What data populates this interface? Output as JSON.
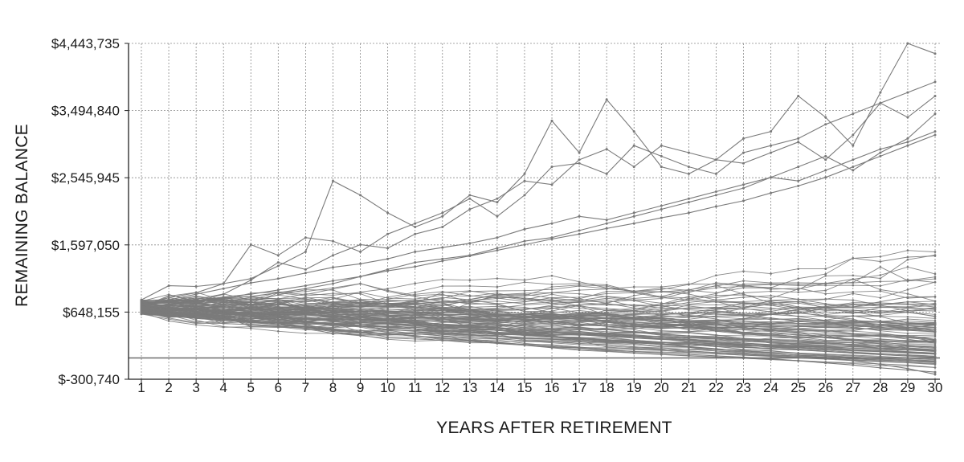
{
  "chart_data": {
    "type": "line",
    "title": "",
    "xlabel": "YEARS AFTER RETIREMENT",
    "ylabel": "REMAINING BALANCE",
    "x": [
      1,
      2,
      3,
      4,
      5,
      6,
      7,
      8,
      9,
      10,
      11,
      12,
      13,
      14,
      15,
      16,
      17,
      18,
      19,
      20,
      21,
      22,
      23,
      24,
      25,
      26,
      27,
      28,
      29,
      30
    ],
    "xticks": [
      "1",
      "2",
      "3",
      "4",
      "5",
      "6",
      "7",
      "8",
      "9",
      "10",
      "11",
      "12",
      "13",
      "14",
      "15",
      "16",
      "17",
      "18",
      "19",
      "20",
      "21",
      "22",
      "23",
      "24",
      "25",
      "26",
      "27",
      "28",
      "29",
      "30"
    ],
    "yticks": [
      {
        "value": -300740,
        "label": "$-300,740"
      },
      {
        "value": 648155,
        "label": "$648,155"
      },
      {
        "value": 1597050,
        "label": "$1,597,050"
      },
      {
        "value": 2545945,
        "label": "$2,545,945"
      },
      {
        "value": 3494840,
        "label": "$3,494,840"
      },
      {
        "value": 4443735,
        "label": "$4,443,735"
      }
    ],
    "ylim": [
      -300740,
      4443735
    ],
    "xlim": [
      1,
      30
    ],
    "reference_line_y": 0,
    "grid": true,
    "series_color": "#7a7a7a",
    "series_count": 110,
    "series": [
      {
        "values": [
          780000,
          790000,
          810000,
          860000,
          900000,
          960000,
          1020000,
          1090000,
          1150000,
          1230000,
          1290000,
          1370000,
          1440000,
          1520000,
          1600000,
          1680000,
          1750000,
          1830000,
          1900000,
          1980000,
          2050000,
          2140000,
          2220000,
          2330000,
          2430000,
          2550000,
          2700000,
          2850000,
          3000000,
          3150000
        ]
      },
      {
        "values": [
          820000,
          1020000,
          1010000,
          1050000,
          1120000,
          1300000,
          1500000,
          2500000,
          2300000,
          2050000,
          1850000,
          2000000,
          2300000,
          2200000,
          2600000,
          3350000,
          2900000,
          3650000,
          3200000,
          2700000,
          2600000,
          2800000,
          3100000,
          3200000,
          3700000,
          3400000,
          3000000,
          3750000,
          4443735,
          4300000
        ]
      },
      {
        "values": [
          750000,
          850000,
          920000,
          1050000,
          1600000,
          1450000,
          1700000,
          1650000,
          1500000,
          1750000,
          1900000,
          2050000,
          2250000,
          2000000,
          2300000,
          2700000,
          2750000,
          2600000,
          3000000,
          2850000,
          2700000,
          2600000,
          2900000,
          3000000,
          3100000,
          3300000,
          3450000,
          3600000,
          3750000,
          3900000
        ]
      },
      {
        "values": [
          700000,
          750000,
          800000,
          900000,
          1100000,
          1350000,
          1250000,
          1450000,
          1600000,
          1550000,
          1750000,
          1850000,
          2100000,
          2250000,
          2500000,
          2450000,
          2800000,
          2950000,
          2700000,
          3000000,
          2900000,
          2800000,
          2750000,
          2900000,
          3050000,
          2800000,
          3150000,
          3600000,
          3400000,
          3700000
        ]
      },
      {
        "values": [
          680000,
          700000,
          710000,
          720000,
          700000,
          690000,
          680000,
          670000,
          660000,
          650000,
          640000,
          620000,
          610000,
          600000,
          590000,
          580000,
          570000,
          560000,
          550000,
          530000,
          510000,
          500000,
          480000,
          460000,
          450000,
          430000,
          420000,
          400000,
          390000,
          370000
        ]
      },
      {
        "values": [
          660000,
          640000,
          610000,
          580000,
          560000,
          530000,
          510000,
          480000,
          460000,
          430000,
          410000,
          390000,
          360000,
          340000,
          320000,
          290000,
          270000,
          250000,
          220000,
          190000,
          160000,
          130000,
          100000,
          70000,
          40000,
          0,
          -40000,
          -90000,
          -150000,
          -230000
        ]
      },
      {
        "values": [
          640000,
          610000,
          570000,
          540000,
          500000,
          470000,
          440000,
          400000,
          370000,
          340000,
          310000,
          280000,
          250000,
          220000,
          190000,
          160000,
          140000,
          110000,
          90000,
          70000,
          50000,
          30000,
          10000,
          -10000,
          -40000,
          -70000,
          -100000,
          -140000,
          -170000,
          -200000
        ]
      },
      {
        "values": [
          620000,
          590000,
          560000,
          530000,
          510000,
          490000,
          480000,
          470000,
          460000,
          450000,
          430000,
          420000,
          400000,
          390000,
          370000,
          360000,
          340000,
          330000,
          310000,
          300000,
          290000,
          270000,
          260000,
          240000,
          220000,
          200000,
          180000,
          160000,
          140000,
          110000
        ]
      },
      {
        "values": [
          760000,
          820000,
          900000,
          980000,
          1060000,
          1120000,
          1200000,
          1280000,
          1330000,
          1400000,
          1500000,
          1560000,
          1620000,
          1700000,
          1820000,
          1900000,
          2000000,
          1950000,
          2050000,
          2150000,
          2250000,
          2350000,
          2450000,
          2550000,
          2500000,
          2650000,
          2800000,
          2950000,
          3050000,
          3200000
        ]
      },
      {
        "values": [
          710000,
          760000,
          790000,
          850000,
          870000,
          920000,
          980000,
          1050000,
          1150000,
          1250000,
          1350000,
          1400000,
          1450000,
          1550000,
          1650000,
          1700000,
          1800000,
          1900000,
          2000000,
          2100000,
          2200000,
          2300000,
          2400000,
          2550000,
          2700000,
          2850000,
          2650000,
          2900000,
          3100000,
          3450000
        ]
      }
    ]
  }
}
